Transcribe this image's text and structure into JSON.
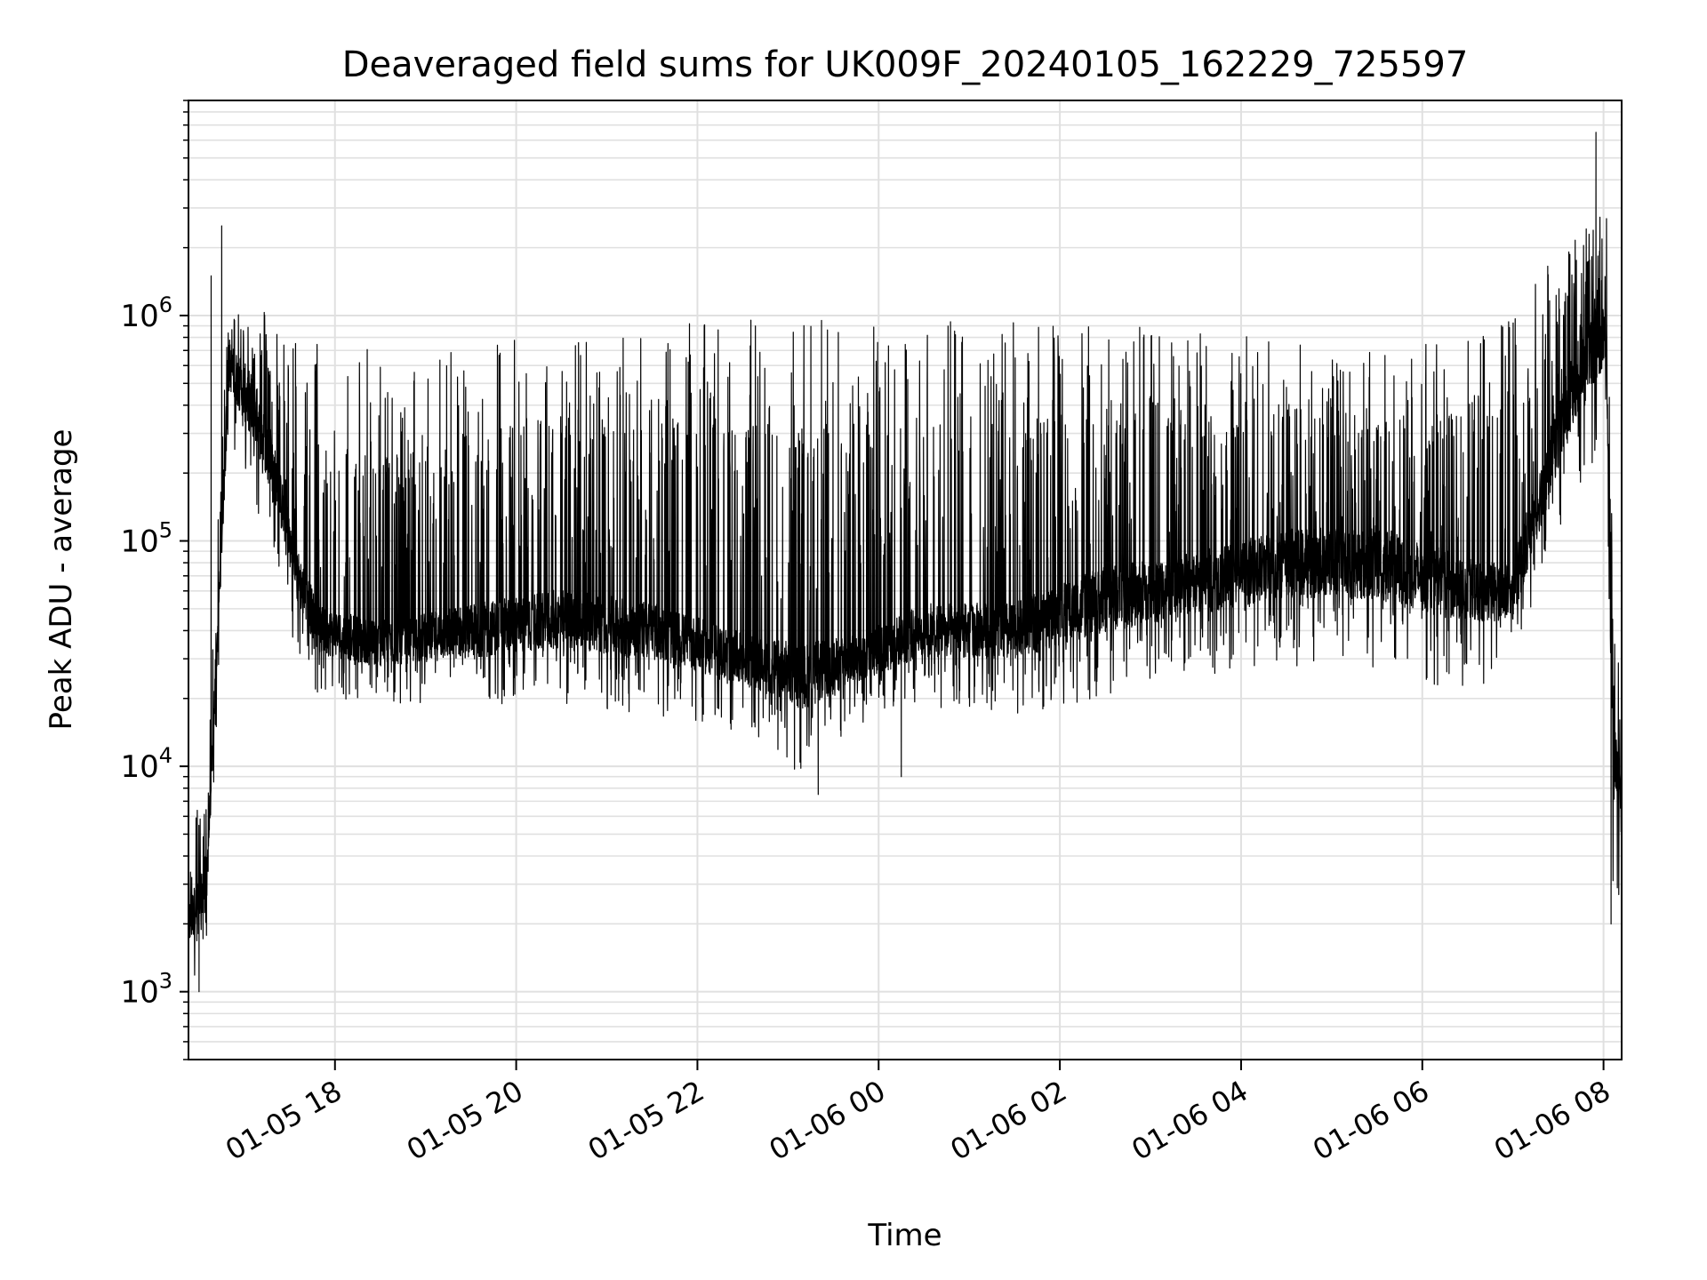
{
  "chart_data": {
    "type": "line",
    "title": "Deaveraged field sums for UK009F_20240105_162229_725597",
    "xlabel": "Time",
    "ylabel": "Peak ADU - average",
    "yscale": "log",
    "ylim": [
      500,
      9000000
    ],
    "xlim": [
      "2024-01-05 16:23",
      "2024-01-06 08:12"
    ],
    "grid": "on (major and minor)",
    "line_color": "#000000",
    "grid_color": "#e0e0e0",
    "x_ticks": [
      {
        "value": "2024-01-05 18:00",
        "label": "01-05 18"
      },
      {
        "value": "2024-01-05 20:00",
        "label": "01-05 20"
      },
      {
        "value": "2024-01-05 22:00",
        "label": "01-05 22"
      },
      {
        "value": "2024-01-06 00:00",
        "label": "01-06 00"
      },
      {
        "value": "2024-01-06 02:00",
        "label": "01-06 02"
      },
      {
        "value": "2024-01-06 04:00",
        "label": "01-06 04"
      },
      {
        "value": "2024-01-06 06:00",
        "label": "01-06 06"
      },
      {
        "value": "2024-01-06 08:00",
        "label": "01-06 08"
      }
    ],
    "y_ticks": [
      {
        "value": 1000,
        "base": "10",
        "exp": "3"
      },
      {
        "value": 10000,
        "base": "10",
        "exp": "4"
      },
      {
        "value": 100000,
        "base": "10",
        "exp": "5"
      },
      {
        "value": 1000000,
        "base": "10",
        "exp": "6"
      }
    ],
    "series": [
      {
        "envelope": {
          "x": [
            "2024-01-05 16:23",
            "2024-01-05 16:35",
            "2024-01-05 16:50",
            "2024-01-05 17:05",
            "2024-01-05 17:20",
            "2024-01-05 17:35",
            "2024-01-05 17:50",
            "2024-01-05 18:30",
            "2024-01-05 19:30",
            "2024-01-05 20:30",
            "2024-01-05 21:30",
            "2024-01-05 22:30",
            "2024-01-05 23:10",
            "2024-01-05 23:45",
            "2024-01-06 00:30",
            "2024-01-06 01:30",
            "2024-01-06 02:30",
            "2024-01-06 03:30",
            "2024-01-06 04:30",
            "2024-01-06 05:30",
            "2024-01-06 06:30",
            "2024-01-06 07:00",
            "2024-01-06 07:30",
            "2024-01-06 07:50",
            "2024-01-06 08:02",
            "2024-01-06 08:06",
            "2024-01-06 08:12"
          ],
          "baseline": [
            2000,
            3000,
            600000,
            400000,
            200000,
            70000,
            40000,
            35000,
            40000,
            45000,
            40000,
            30000,
            25000,
            30000,
            40000,
            40000,
            55000,
            65000,
            80000,
            80000,
            60000,
            60000,
            300000,
            700000,
            800000,
            12000,
            6000
          ],
          "low": [
            900,
            1500,
            300000,
            150000,
            90000,
            30000,
            20000,
            18000,
            18000,
            18000,
            17000,
            14000,
            9000,
            15000,
            18000,
            17000,
            20000,
            25000,
            28000,
            25000,
            22000,
            25000,
            100000,
            200000,
            300000,
            3000,
            2500
          ],
          "high": [
            6000,
            10000,
            1400000,
            1200000,
            1000000,
            800000,
            800000,
            700000,
            800000,
            900000,
            900000,
            950000,
            1000000,
            1000000,
            1000000,
            950000,
            900000,
            900000,
            800000,
            700000,
            800000,
            1200000,
            2000000,
            2500000,
            6000000,
            100000,
            20000
          ]
        },
        "notable_points": [
          {
            "x": "2024-01-05 16:23",
            "y": 800
          },
          {
            "x": "2024-01-05 16:30",
            "y": 1000
          },
          {
            "x": "2024-01-05 16:38",
            "y": 1500000
          },
          {
            "x": "2024-01-05 16:45",
            "y": 2500000
          },
          {
            "x": "2024-01-05 23:20",
            "y": 7500
          },
          {
            "x": "2024-01-06 00:15",
            "y": 9000
          },
          {
            "x": "2024-01-06 07:55",
            "y": 6500000
          },
          {
            "x": "2024-01-06 08:05",
            "y": 2000
          }
        ]
      }
    ]
  }
}
